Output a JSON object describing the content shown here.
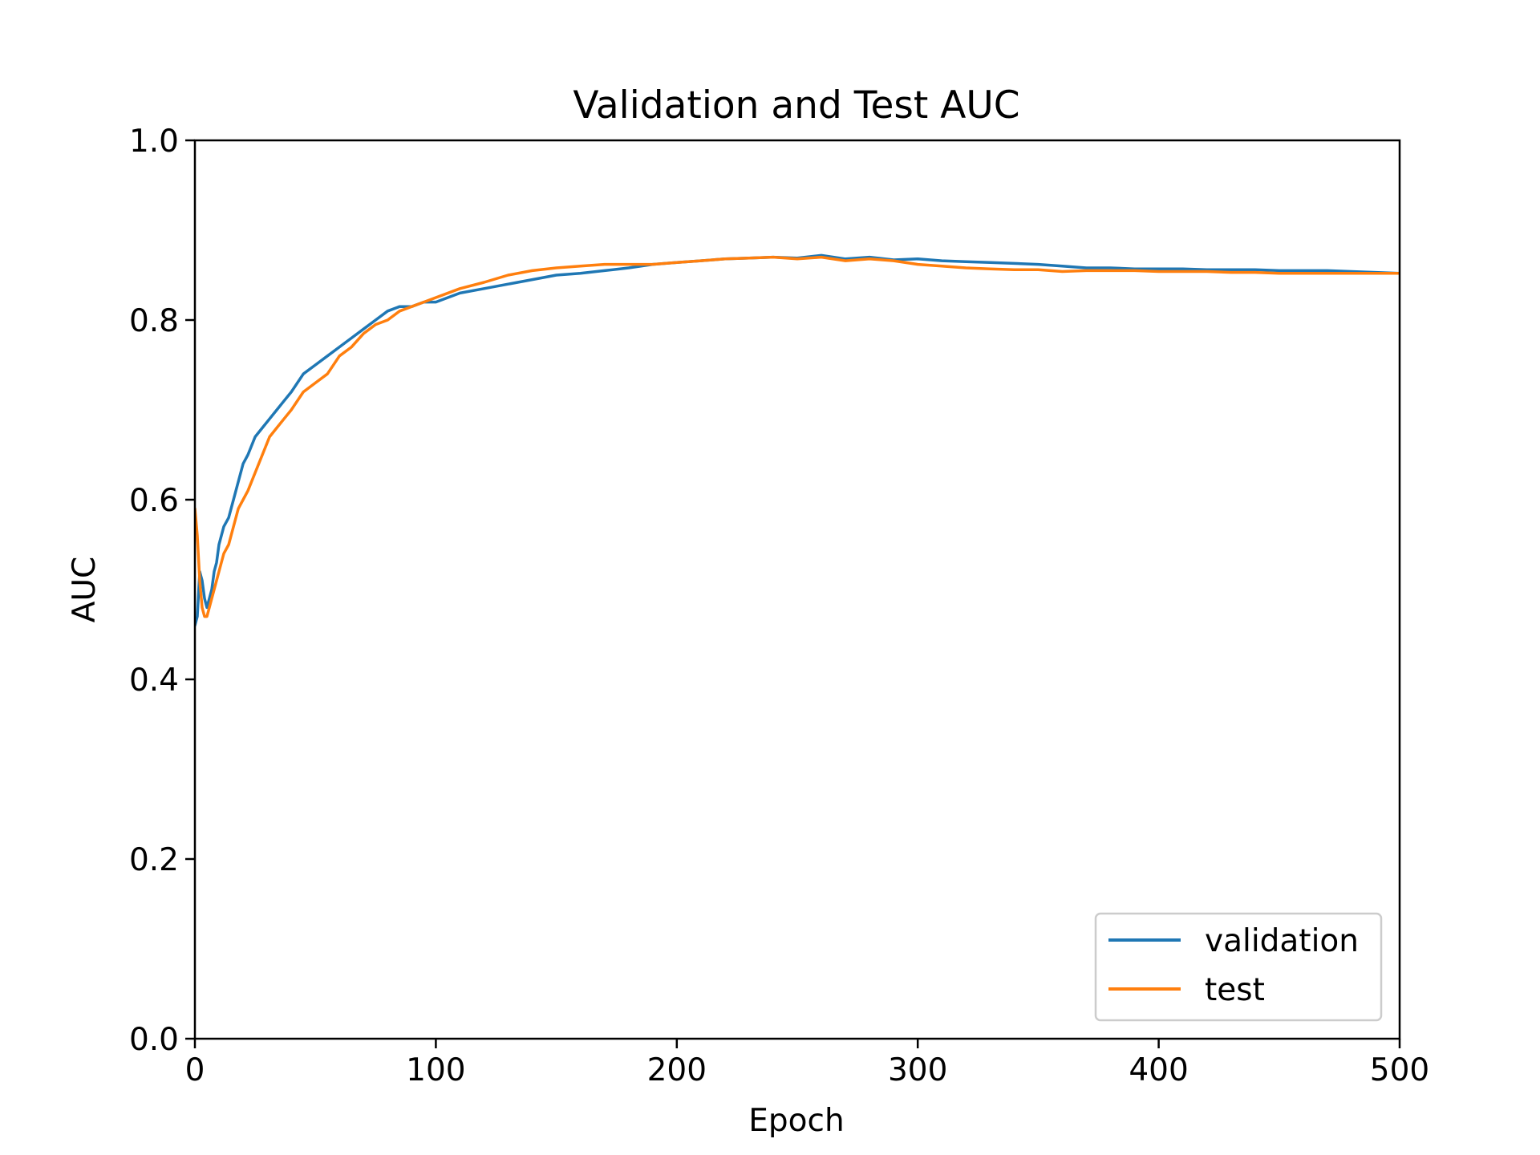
{
  "chart_data": {
    "type": "line",
    "title": "Validation and Test AUC",
    "xlabel": "Epoch",
    "ylabel": "AUC",
    "xlim": [
      0,
      500
    ],
    "ylim": [
      0.0,
      1.0
    ],
    "xticks": [
      "0",
      "100",
      "200",
      "300",
      "400",
      "500"
    ],
    "yticks": [
      "0.0",
      "0.2",
      "0.4",
      "0.6",
      "0.8",
      "1.0"
    ],
    "grid": false,
    "legend": {
      "position": "bottom-right"
    },
    "series": [
      {
        "name": "validation",
        "color": "#1f77b4",
        "x": [
          0,
          1,
          2,
          3,
          4,
          5,
          6,
          7,
          8,
          9,
          10,
          12,
          14,
          16,
          18,
          20,
          22,
          25,
          28,
          31,
          34,
          37,
          40,
          45,
          50,
          55,
          60,
          65,
          70,
          75,
          80,
          85,
          90,
          95,
          100,
          110,
          120,
          130,
          140,
          150,
          160,
          170,
          180,
          190,
          200,
          210,
          220,
          230,
          240,
          250,
          260,
          270,
          280,
          290,
          300,
          310,
          320,
          330,
          340,
          350,
          360,
          370,
          380,
          390,
          400,
          410,
          420,
          430,
          440,
          450,
          460,
          470,
          480,
          490,
          500
        ],
        "y": [
          0.46,
          0.47,
          0.52,
          0.51,
          0.49,
          0.48,
          0.49,
          0.5,
          0.52,
          0.53,
          0.55,
          0.57,
          0.58,
          0.6,
          0.62,
          0.64,
          0.65,
          0.67,
          0.68,
          0.69,
          0.7,
          0.71,
          0.72,
          0.74,
          0.75,
          0.76,
          0.77,
          0.78,
          0.79,
          0.8,
          0.81,
          0.815,
          0.815,
          0.82,
          0.82,
          0.83,
          0.835,
          0.84,
          0.845,
          0.85,
          0.852,
          0.855,
          0.858,
          0.862,
          0.864,
          0.866,
          0.868,
          0.869,
          0.87,
          0.869,
          0.872,
          0.868,
          0.87,
          0.867,
          0.868,
          0.866,
          0.865,
          0.864,
          0.863,
          0.862,
          0.86,
          0.858,
          0.858,
          0.857,
          0.857,
          0.857,
          0.856,
          0.856,
          0.856,
          0.855,
          0.855,
          0.855,
          0.854,
          0.853,
          0.852
        ]
      },
      {
        "name": "test",
        "color": "#ff7f0e",
        "x": [
          0,
          1,
          2,
          3,
          4,
          5,
          6,
          7,
          8,
          9,
          10,
          12,
          14,
          16,
          18,
          20,
          22,
          25,
          28,
          31,
          34,
          37,
          40,
          45,
          50,
          55,
          60,
          65,
          70,
          75,
          80,
          85,
          90,
          95,
          100,
          110,
          120,
          130,
          140,
          150,
          160,
          170,
          180,
          190,
          200,
          210,
          220,
          230,
          240,
          250,
          260,
          270,
          280,
          290,
          300,
          310,
          320,
          330,
          340,
          350,
          360,
          370,
          380,
          390,
          400,
          410,
          420,
          430,
          440,
          450,
          460,
          470,
          480,
          490,
          500
        ],
        "y": [
          0.59,
          0.56,
          0.51,
          0.48,
          0.47,
          0.47,
          0.48,
          0.49,
          0.5,
          0.51,
          0.52,
          0.54,
          0.55,
          0.57,
          0.59,
          0.6,
          0.61,
          0.63,
          0.65,
          0.67,
          0.68,
          0.69,
          0.7,
          0.72,
          0.73,
          0.74,
          0.76,
          0.77,
          0.785,
          0.795,
          0.8,
          0.81,
          0.815,
          0.82,
          0.825,
          0.835,
          0.842,
          0.85,
          0.855,
          0.858,
          0.86,
          0.862,
          0.862,
          0.862,
          0.864,
          0.866,
          0.868,
          0.869,
          0.87,
          0.868,
          0.87,
          0.866,
          0.868,
          0.866,
          0.862,
          0.86,
          0.858,
          0.857,
          0.856,
          0.856,
          0.854,
          0.855,
          0.855,
          0.855,
          0.854,
          0.854,
          0.854,
          0.853,
          0.853,
          0.852,
          0.852,
          0.852,
          0.852,
          0.852,
          0.852
        ]
      }
    ]
  }
}
